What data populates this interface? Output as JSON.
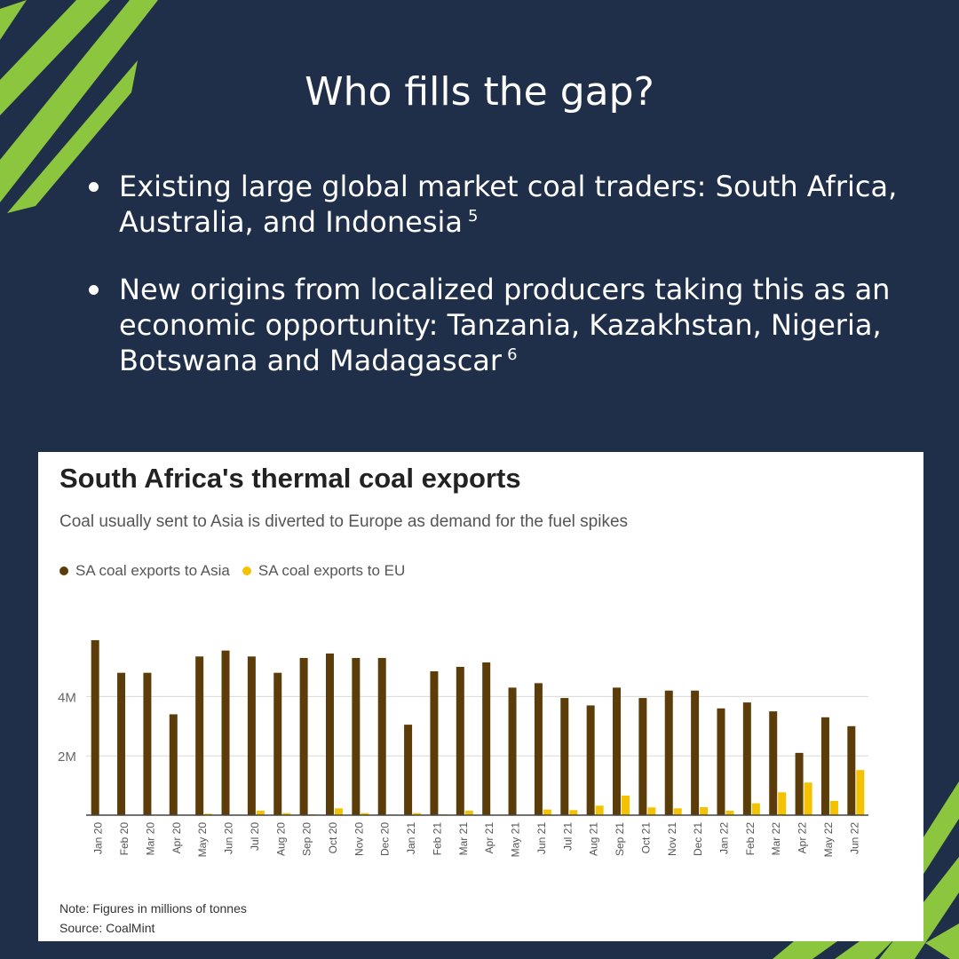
{
  "slide": {
    "title": "Who fills the gap?",
    "bullets": [
      {
        "text": "Existing large global market coal traders: South Africa, Australia, and Indonesia",
        "ref": "5"
      },
      {
        "text": "New origins from localized producers taking this as an economic opportunity: Tanzania, Kazakhstan, Nigeria, Botswana and Madagascar",
        "ref": "6"
      }
    ],
    "colors": {
      "background": "#1f2f49",
      "accent_stripe": "#8cc63f",
      "text": "#ffffff"
    }
  },
  "chart_data": {
    "type": "bar",
    "title": "South Africa's thermal coal exports",
    "subtitle": "Coal usually sent to Asia is diverted to Europe as demand for the fuel spikes",
    "categories": [
      "Jan 20",
      "Feb 20",
      "Mar 20",
      "Apr 20",
      "May 20",
      "Jun 20",
      "Jul 20",
      "Aug 20",
      "Sep 20",
      "Oct 20",
      "Nov 20",
      "Dec 20",
      "Jan 21",
      "Feb 21",
      "Mar 21",
      "Apr 21",
      "May 21",
      "Jun 21",
      "Jul 21",
      "Aug 21",
      "Sep 21",
      "Oct 21",
      "Nov 21",
      "Dec 21",
      "Jan 22",
      "Feb 22",
      "Mar 22",
      "Apr 22",
      "May 22",
      "Jun 22"
    ],
    "series": [
      {
        "name": "SA coal exports to Asia",
        "color": "#5c3d0a",
        "values": [
          5.9,
          4.8,
          4.8,
          3.4,
          5.35,
          5.55,
          5.35,
          4.8,
          5.3,
          5.45,
          5.3,
          5.3,
          3.05,
          4.85,
          5.0,
          5.15,
          4.3,
          4.45,
          3.95,
          3.7,
          4.3,
          3.95,
          4.2,
          4.2,
          3.6,
          3.8,
          3.5,
          2.1,
          3.3,
          3.0
        ]
      },
      {
        "name": "SA coal exports to EU",
        "color": "#f4c200",
        "values": [
          0,
          0,
          0,
          0,
          0.05,
          0,
          0.15,
          0.07,
          0.03,
          0.23,
          0.07,
          0.02,
          0.07,
          0.03,
          0.15,
          0,
          0,
          0.19,
          0.17,
          0.32,
          0.66,
          0.26,
          0.23,
          0.27,
          0.15,
          0.4,
          0.77,
          1.1,
          0.48,
          1.52
        ]
      }
    ],
    "ytick_labels": [
      "2M",
      "4M"
    ],
    "ytick_values": [
      2,
      4
    ],
    "ylim": [
      0,
      6
    ],
    "grid": true,
    "legend_position": "top-left",
    "note": "Note: Figures in millions of tonnes",
    "source": "Source: CoalMint"
  }
}
